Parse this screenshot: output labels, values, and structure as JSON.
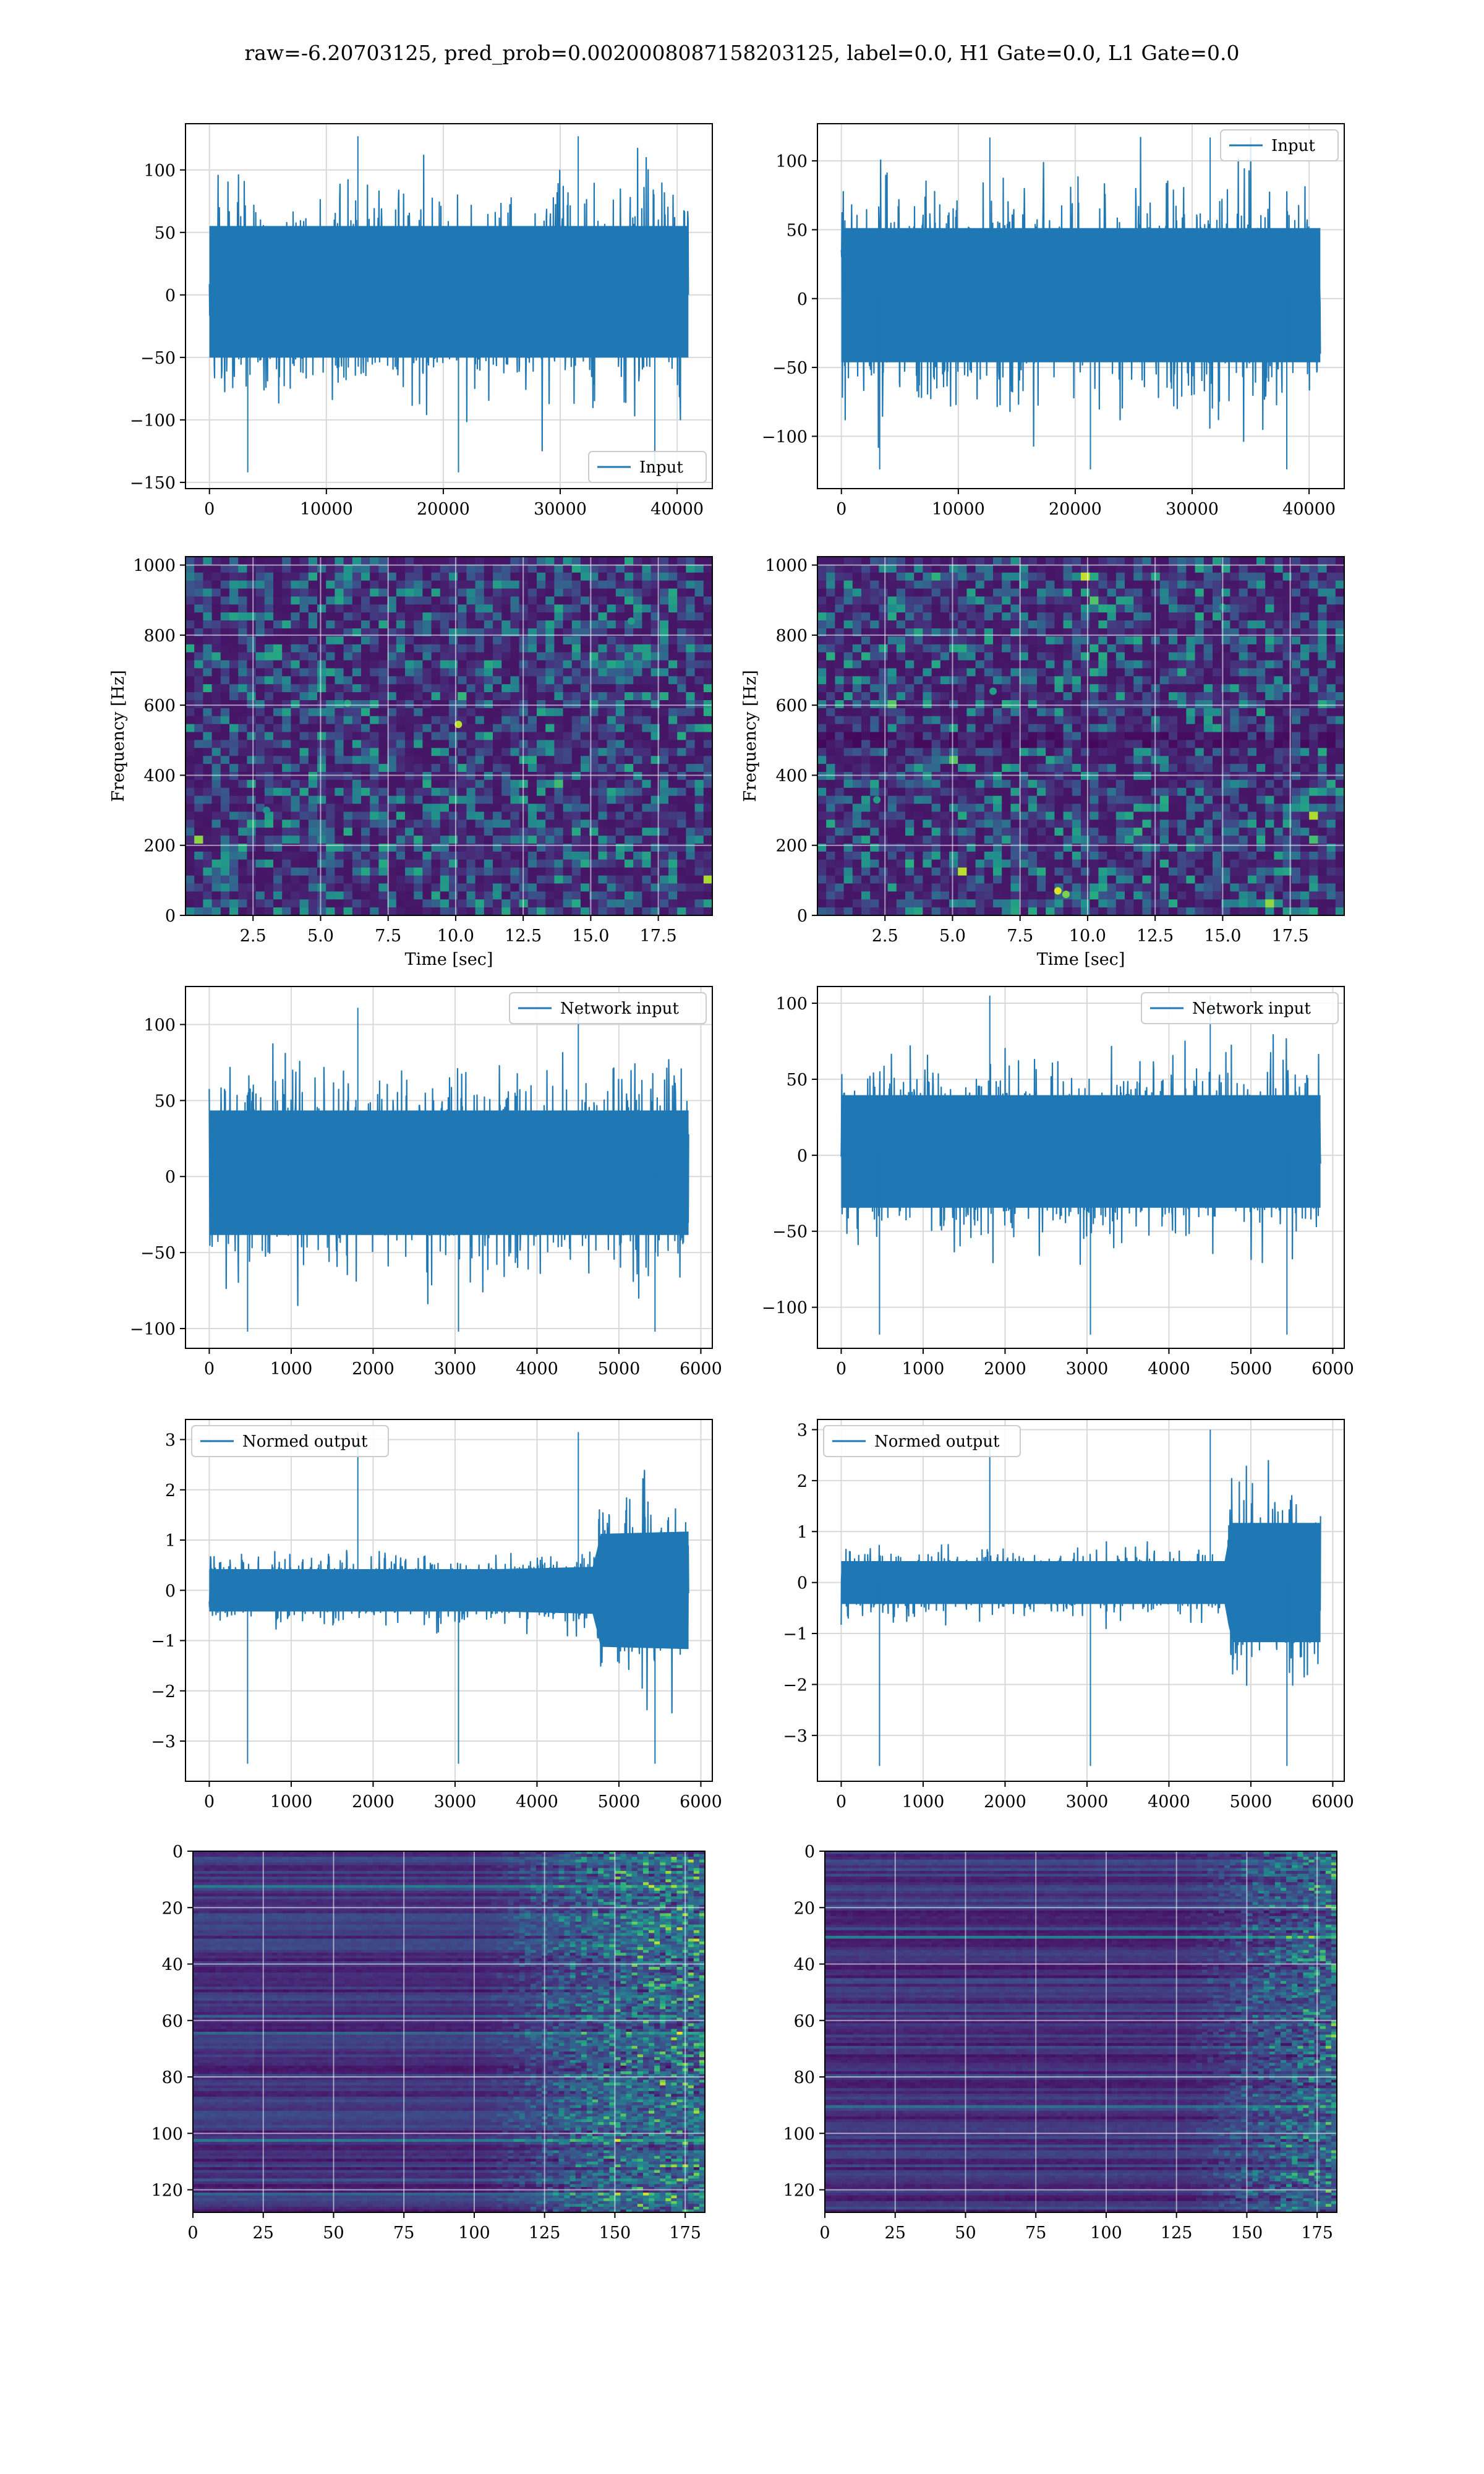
{
  "figure_title": "raw=-6.20703125, pred_prob=0.0020008087158203125, label=0.0, H1 Gate=0.0, L1 Gate=0.0",
  "colors": {
    "line": "#1f77b4",
    "grid": "#d9d9d9",
    "viridis": [
      "#440154",
      "#472c7a",
      "#3b528b",
      "#2c728e",
      "#21918c",
      "#28ae80",
      "#5ec962",
      "#addc30",
      "#fde725"
    ]
  },
  "chart_data": [
    {
      "id": "h1-input",
      "type": "line",
      "title": "",
      "xlabel": "",
      "ylabel": "",
      "xlim": [
        -2048,
        43008
      ],
      "ylim": [
        -155,
        137
      ],
      "xticks": [
        0,
        10000,
        20000,
        30000,
        40000
      ],
      "yticks": [
        -150,
        -100,
        -50,
        0,
        50,
        100
      ],
      "grid": true,
      "legend_position": "lower-right",
      "series": [
        {
          "name": "Input",
          "x_range": [
            0,
            40960
          ],
          "summary": {
            "envelope_low": -65,
            "envelope_high": 70,
            "min": -142,
            "max": 127
          },
          "profile": [
            [
              0,
              1.0
            ],
            [
              40960,
              1.0
            ]
          ]
        }
      ]
    },
    {
      "id": "l1-input",
      "type": "line",
      "title": "",
      "xlabel": "",
      "ylabel": "",
      "xlim": [
        -2048,
        43008
      ],
      "ylim": [
        -138,
        127
      ],
      "xticks": [
        0,
        10000,
        20000,
        30000,
        40000
      ],
      "yticks": [
        -100,
        -50,
        0,
        50,
        100
      ],
      "grid": true,
      "legend_position": "upper-right",
      "series": [
        {
          "name": "Input",
          "x_range": [
            0,
            40960
          ],
          "summary": {
            "envelope_low": -60,
            "envelope_high": 65,
            "min": -124,
            "max": 117
          },
          "profile": [
            [
              0,
              1.0
            ],
            [
              40960,
              1.0
            ]
          ]
        }
      ]
    },
    {
      "id": "h1-spectrogram",
      "type": "heatmap",
      "title": "",
      "xlabel": "Time [sec]",
      "ylabel": "Frequency [Hz]",
      "xlim": [
        0,
        19.5
      ],
      "ylim": [
        0,
        1024
      ],
      "xticks": [
        2.5,
        5.0,
        7.5,
        10.0,
        12.5,
        15.0,
        17.5
      ],
      "xtick_labels": [
        "2.5",
        "5.0",
        "7.5",
        "10.0",
        "12.5",
        "15.0",
        "17.5"
      ],
      "yticks": [
        0,
        200,
        400,
        600,
        800,
        1000
      ],
      "grid": true,
      "colormap": "viridis",
      "grid_shape": [
        60,
        45
      ],
      "intensity": "mostly low, scattered faint speckles",
      "highlights": [
        [
          10.1,
          545,
          0.9
        ],
        [
          6.0,
          605,
          0.6
        ],
        [
          16.5,
          840,
          0.55
        ],
        [
          3.0,
          300,
          0.5
        ],
        [
          11.5,
          60,
          0.5
        ]
      ]
    },
    {
      "id": "l1-spectrogram",
      "type": "heatmap",
      "title": "",
      "xlabel": "Time [sec]",
      "ylabel": "Frequency [Hz]",
      "xlim": [
        0,
        19.5
      ],
      "ylim": [
        0,
        1024
      ],
      "xticks": [
        2.5,
        5.0,
        7.5,
        10.0,
        12.5,
        15.0,
        17.5
      ],
      "xtick_labels": [
        "2.5",
        "5.0",
        "7.5",
        "10.0",
        "12.5",
        "15.0",
        "17.5"
      ],
      "yticks": [
        0,
        200,
        400,
        600,
        800,
        1000
      ],
      "grid": true,
      "colormap": "viridis",
      "grid_shape": [
        60,
        45
      ],
      "intensity": "mostly low, dark horizontal band near 500 Hz",
      "highlights": [
        [
          8.9,
          70,
          0.95
        ],
        [
          9.2,
          60,
          0.8
        ],
        [
          2.2,
          330,
          0.55
        ],
        [
          15.0,
          880,
          0.5
        ],
        [
          6.5,
          640,
          0.55
        ]
      ]
    },
    {
      "id": "h1-network-input",
      "type": "line",
      "title": "",
      "xlabel": "",
      "ylabel": "",
      "xlim": [
        -290,
        6140
      ],
      "ylim": [
        -113,
        125
      ],
      "xticks": [
        0,
        1000,
        2000,
        3000,
        4000,
        5000,
        6000
      ],
      "yticks": [
        -100,
        -50,
        0,
        50,
        100
      ],
      "grid": true,
      "legend_position": "upper-right",
      "series": [
        {
          "name": "Network input",
          "x_range": [
            0,
            5850
          ],
          "summary": {
            "envelope_low": -50,
            "envelope_high": 55,
            "min": -102,
            "max": 111
          },
          "profile": [
            [
              0,
              1.0
            ],
            [
              5850,
              1.0
            ]
          ]
        }
      ]
    },
    {
      "id": "l1-network-input",
      "type": "line",
      "title": "",
      "xlabel": "",
      "ylabel": "",
      "xlim": [
        -290,
        6140
      ],
      "ylim": [
        -127,
        111
      ],
      "xticks": [
        0,
        1000,
        2000,
        3000,
        4000,
        5000,
        6000
      ],
      "yticks": [
        -100,
        -50,
        0,
        50,
        100
      ],
      "grid": true,
      "legend_position": "upper-right",
      "series": [
        {
          "name": "Network input",
          "x_range": [
            0,
            5850
          ],
          "summary": {
            "envelope_low": -45,
            "envelope_high": 50,
            "min": -118,
            "max": 105
          },
          "profile": [
            [
              0,
              1.0
            ],
            [
              5850,
              1.0
            ]
          ]
        }
      ]
    },
    {
      "id": "h1-normed-output",
      "type": "line",
      "title": "",
      "xlabel": "",
      "ylabel": "",
      "xlim": [
        -290,
        6140
      ],
      "ylim": [
        -3.8,
        3.4
      ],
      "xticks": [
        0,
        1000,
        2000,
        3000,
        4000,
        5000,
        6000
      ],
      "yticks": [
        -3,
        -2,
        -1,
        0,
        1,
        2,
        3
      ],
      "grid": true,
      "legend_position": "upper-left",
      "series": [
        {
          "name": "Normed output",
          "x_range": [
            0,
            5850
          ],
          "summary": {
            "envelope_low": -0.6,
            "envelope_high": 0.6,
            "min": -3.45,
            "max": 3.15
          },
          "profile": [
            [
              0,
              0.9
            ],
            [
              3500,
              0.9
            ],
            [
              4700,
              1.0
            ],
            [
              4760,
              2.4
            ],
            [
              5850,
              2.5
            ]
          ]
        }
      ]
    },
    {
      "id": "l1-normed-output",
      "type": "line",
      "title": "",
      "xlabel": "",
      "ylabel": "",
      "xlim": [
        -290,
        6140
      ],
      "ylim": [
        -3.9,
        3.2
      ],
      "xticks": [
        0,
        1000,
        2000,
        3000,
        4000,
        5000,
        6000
      ],
      "yticks": [
        -3,
        -2,
        -1,
        0,
        1,
        2,
        3
      ],
      "grid": true,
      "legend_position": "upper-left",
      "series": [
        {
          "name": "Normed output",
          "x_range": [
            0,
            5850
          ],
          "summary": {
            "envelope_low": -0.6,
            "envelope_high": 0.6,
            "min": -3.6,
            "max": 3.0
          },
          "profile": [
            [
              0,
              0.9
            ],
            [
              4700,
              0.9
            ],
            [
              4750,
              2.5
            ],
            [
              5850,
              2.5
            ]
          ]
        }
      ]
    },
    {
      "id": "h1-feature-map",
      "type": "heatmap",
      "title": "",
      "xlabel": "",
      "ylabel": "",
      "xlim": [
        0,
        182
      ],
      "ylim": [
        128,
        0
      ],
      "xticks": [
        0,
        25,
        50,
        75,
        100,
        125,
        150,
        175
      ],
      "yticks": [
        0,
        20,
        40,
        60,
        80,
        100,
        120
      ],
      "grid": true,
      "colormap": "viridis",
      "grid_shape": [
        182,
        128
      ],
      "row_stripes": true,
      "active_from_x": 100,
      "intensity": "dark uniform rows up to x=100, bright green/yellow speckle beyond x=130"
    },
    {
      "id": "l1-feature-map",
      "type": "heatmap",
      "title": "",
      "xlabel": "",
      "ylabel": "",
      "xlim": [
        0,
        182
      ],
      "ylim": [
        128,
        0
      ],
      "xticks": [
        0,
        25,
        50,
        75,
        100,
        125,
        150,
        175
      ],
      "yticks": [
        0,
        20,
        40,
        60,
        80,
        100,
        120
      ],
      "grid": true,
      "colormap": "viridis",
      "grid_shape": [
        182,
        128
      ],
      "row_stripes": true,
      "active_from_x": 125,
      "intensity": "dark striped rows up to x=125, bright speckle beyond x=135 with a bright patch near x=150, y=125"
    }
  ]
}
